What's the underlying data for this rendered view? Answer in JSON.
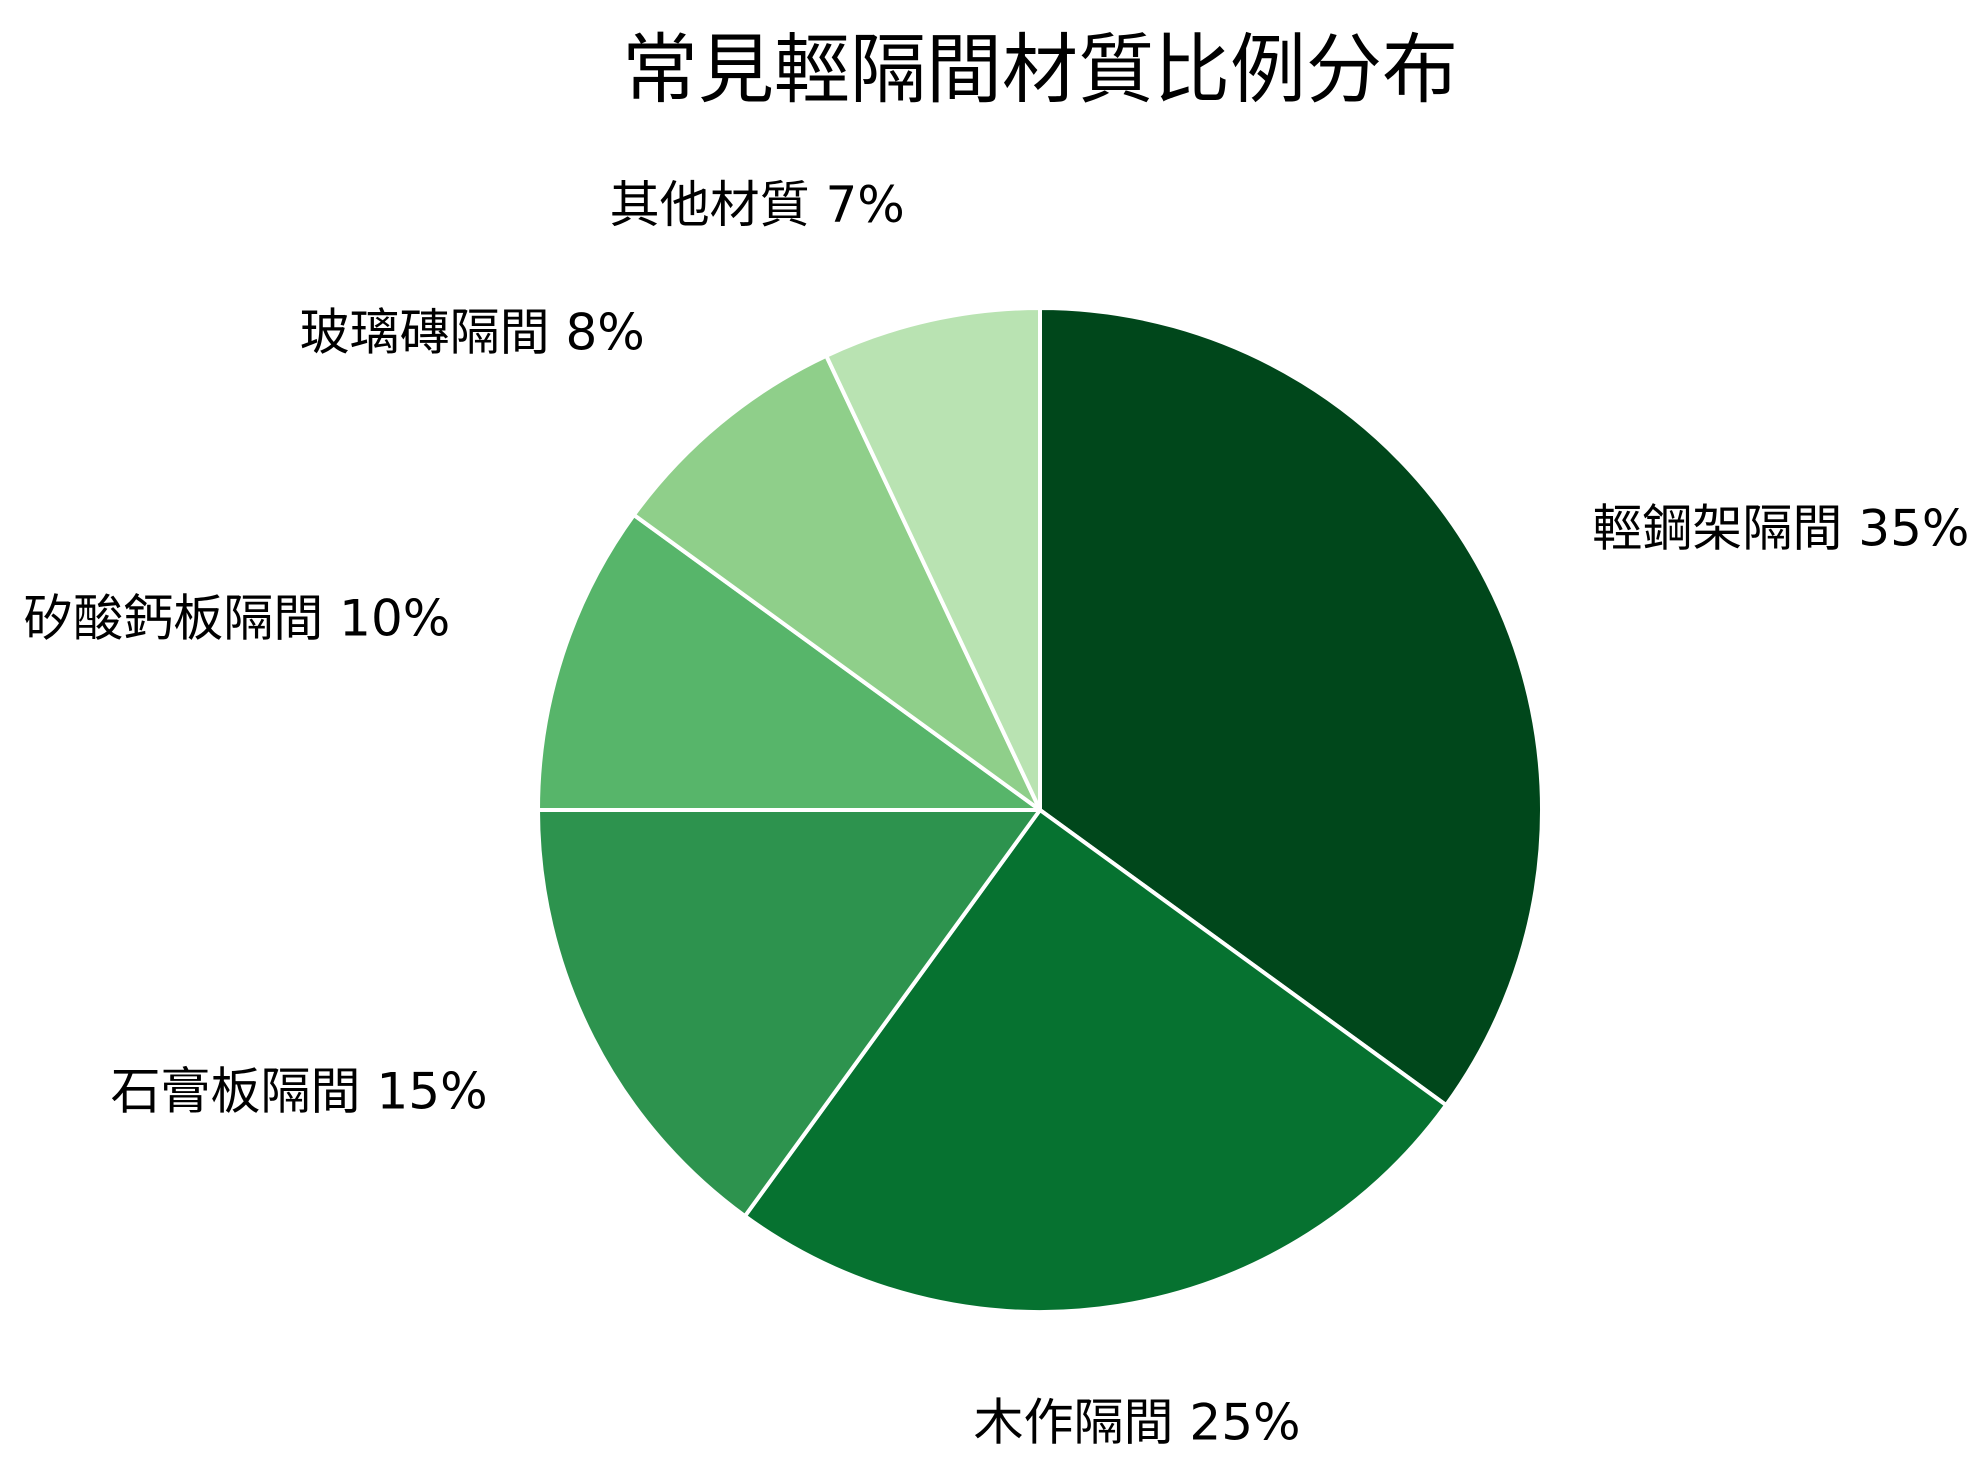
{
  "chart_data": {
    "type": "pie",
    "title": "常見輕隔間材質比例分布",
    "start_angle": "12 o'clock",
    "direction": "clockwise",
    "slices": [
      {
        "label": "輕鋼架隔間 35%",
        "value": 35,
        "color": "#00471b"
      },
      {
        "label": "木作隔間 25%",
        "value": 25,
        "color": "#067230"
      },
      {
        "label": "石膏板隔間 15%",
        "value": 15,
        "color": "#2d934e"
      },
      {
        "label": "矽酸鈣板隔間 10%",
        "value": 10,
        "color": "#57b56a"
      },
      {
        "label": "玻璃磚隔間 8%",
        "value": 8,
        "color": "#8fcf8a"
      },
      {
        "label": "其他材質 7%",
        "value": 7,
        "color": "#b9e3b2"
      }
    ],
    "slice_edge_color": "#ffffff"
  }
}
